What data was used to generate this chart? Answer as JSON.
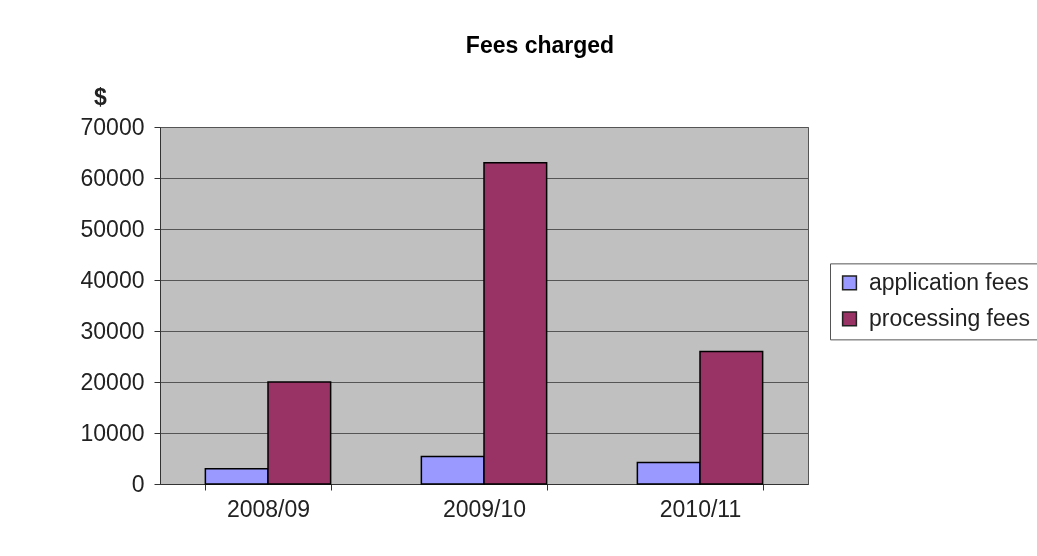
{
  "chart_data": {
    "type": "bar",
    "title": "Fees charged",
    "ylabel": "$",
    "categories": [
      "2008/09",
      "2009/10",
      "2010/11"
    ],
    "series": [
      {
        "name": "application fees",
        "color": "#9999ff",
        "values": [
          3000,
          5400,
          4200
        ]
      },
      {
        "name": "processing fees",
        "color": "#993366",
        "values": [
          20000,
          63000,
          26000
        ]
      }
    ],
    "ylim": [
      0,
      70000
    ],
    "yticks": [
      0,
      10000,
      20000,
      30000,
      40000,
      50000,
      60000,
      70000
    ],
    "grid": "y",
    "legend": "right"
  }
}
